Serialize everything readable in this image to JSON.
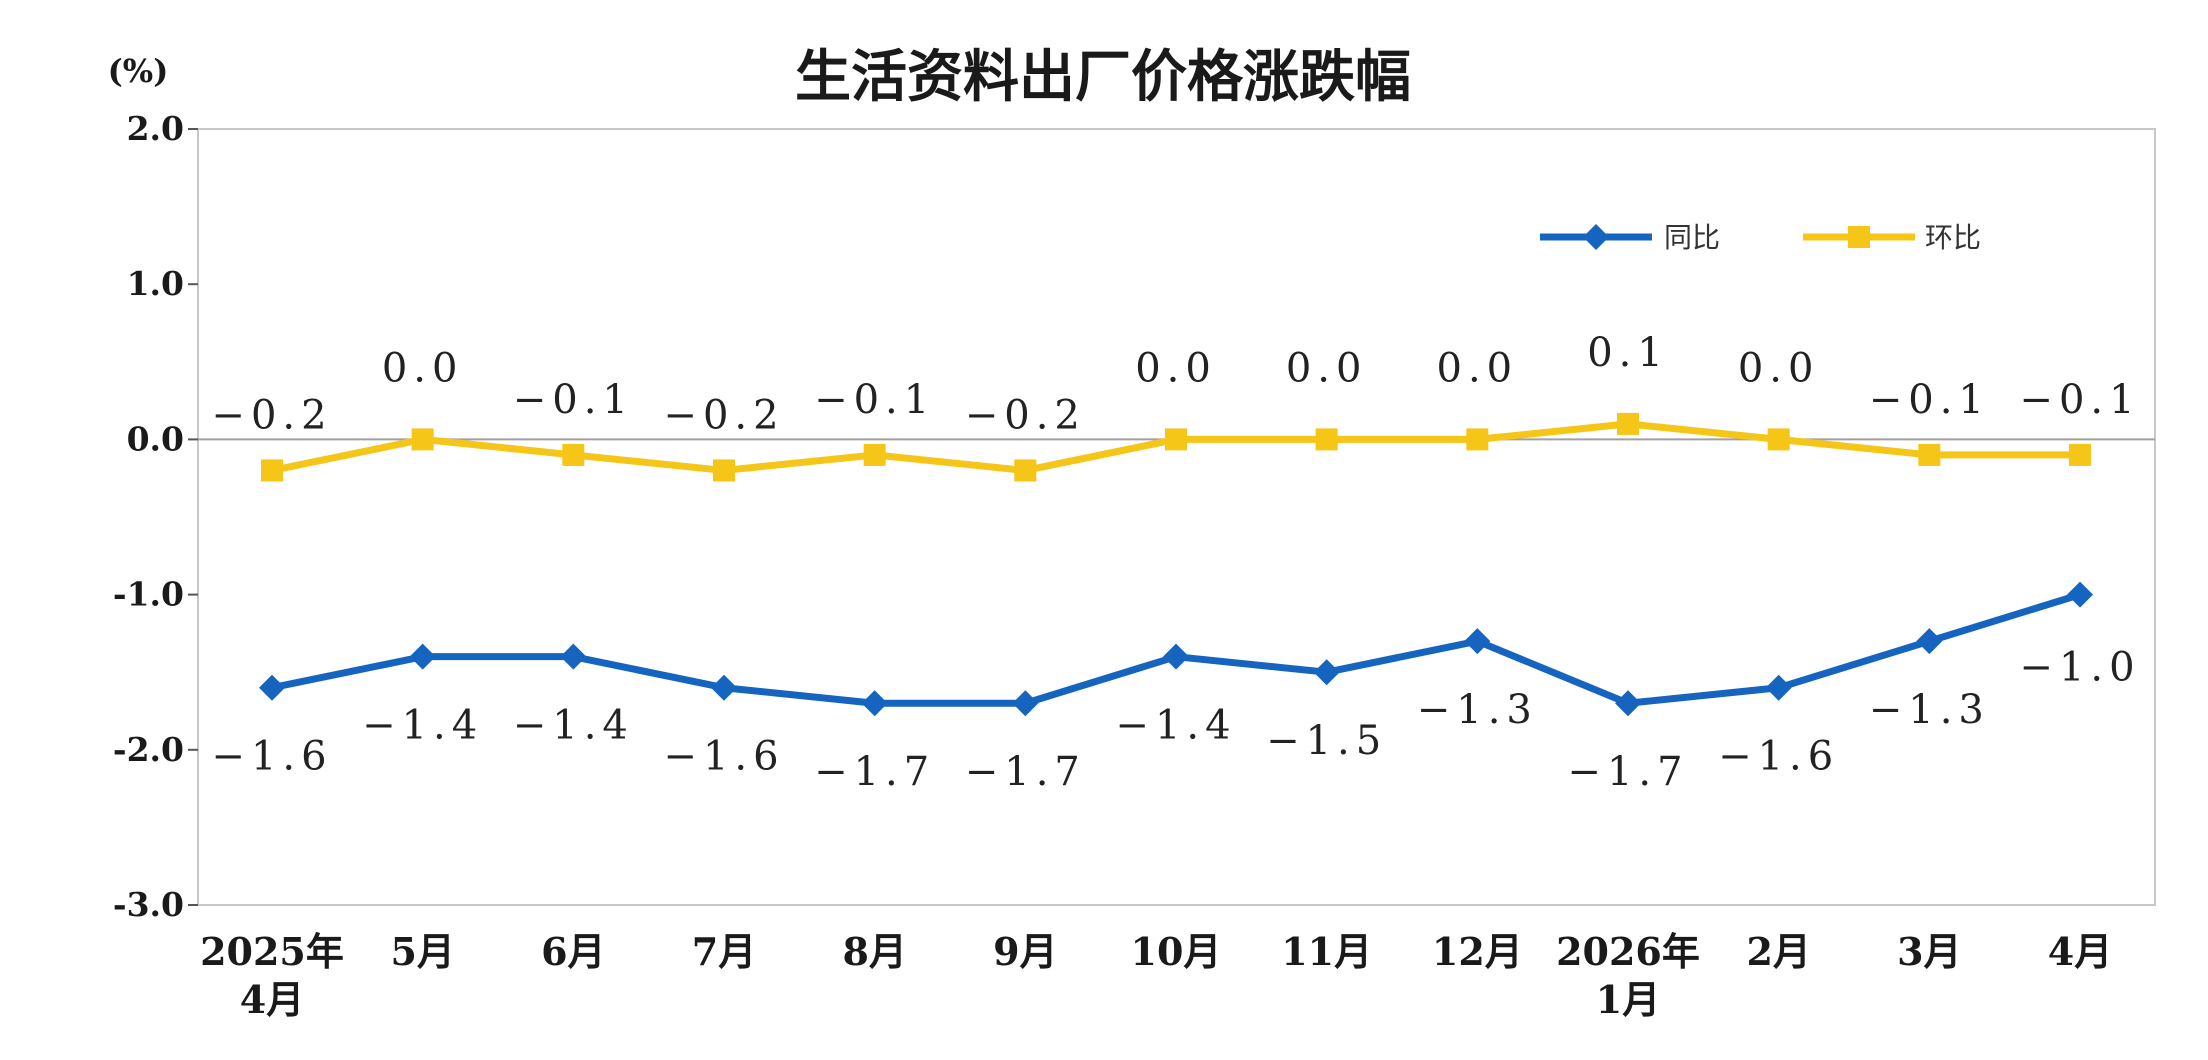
{
  "chart_data": {
    "type": "line",
    "title": "生活资料出厂价格涨跌幅",
    "ylabel": "(%)",
    "ylim": [
      -3.0,
      2.0
    ],
    "yticks": [
      2.0,
      1.0,
      0.0,
      -1.0,
      -2.0,
      -3.0
    ],
    "ytick_labels": [
      "2.0",
      "1.0",
      "0.0",
      "-1.0",
      "-2.0",
      "-3.0"
    ],
    "categories": [
      [
        "2025年",
        "4月"
      ],
      [
        "5月"
      ],
      [
        "6月"
      ],
      [
        "7月"
      ],
      [
        "8月"
      ],
      [
        "9月"
      ],
      [
        "10月"
      ],
      [
        "11月"
      ],
      [
        "12月"
      ],
      [
        "2026年",
        "1月"
      ],
      [
        "2月"
      ],
      [
        "3月"
      ],
      [
        "4月"
      ]
    ],
    "legend_position": "top-right",
    "series": [
      {
        "name": "同比",
        "color": "#1565C0",
        "marker": "diamond",
        "values": [
          -1.6,
          -1.4,
          -1.4,
          -1.6,
          -1.7,
          -1.7,
          -1.4,
          -1.5,
          -1.3,
          -1.7,
          -1.6,
          -1.3,
          -1.0
        ],
        "labels": [
          "−1.6",
          "−1.4",
          "−1.4",
          "−1.6",
          "−1.7",
          "−1.7",
          "−1.4",
          "−1.5",
          "−1.3",
          "−1.7",
          "−1.6",
          "−1.3",
          "−1.0"
        ]
      },
      {
        "name": "环比",
        "color": "#F5C518",
        "marker": "square",
        "values": [
          -0.2,
          0.0,
          -0.1,
          -0.2,
          -0.1,
          -0.2,
          0.0,
          0.0,
          0.0,
          0.1,
          0.0,
          -0.1,
          -0.1
        ],
        "labels": [
          "−0.2",
          "0.0",
          "−0.1",
          "−0.2",
          "−0.1",
          "−0.2",
          "0.0",
          "0.0",
          "0.0",
          "0.1",
          "0.0",
          "−0.1",
          "−0.1"
        ]
      }
    ]
  }
}
